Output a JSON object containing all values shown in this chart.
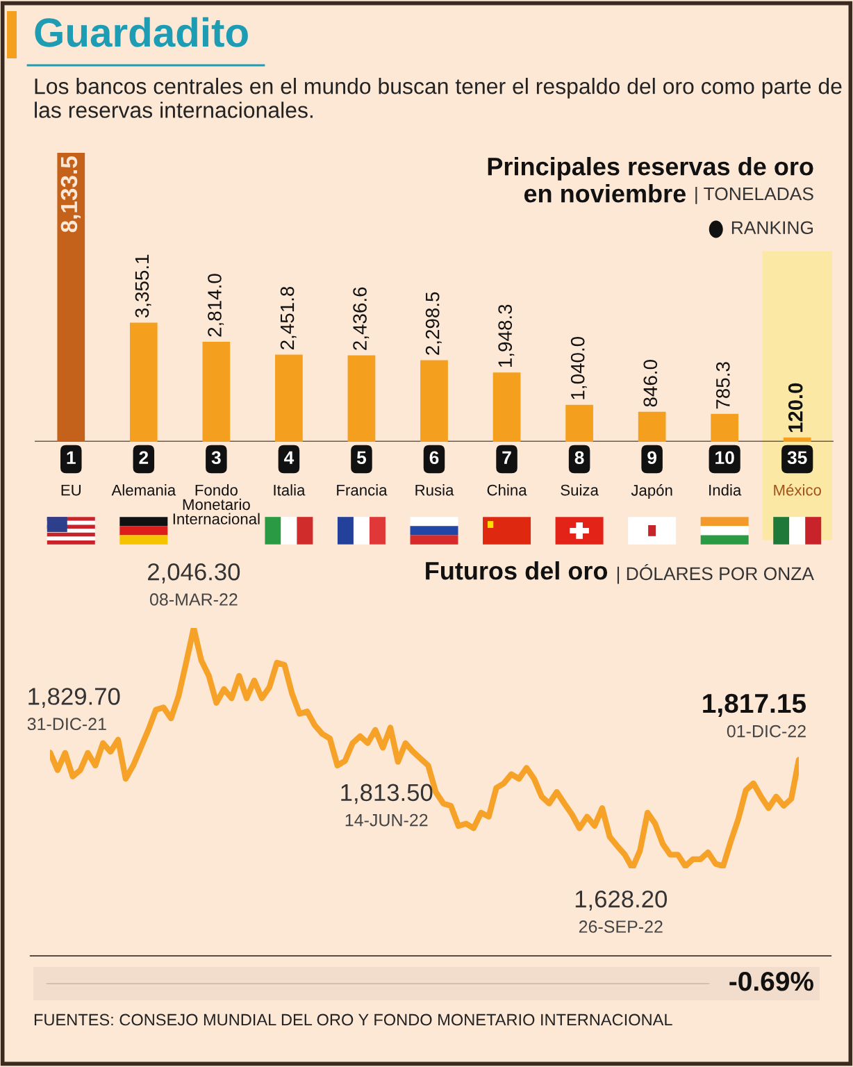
{
  "chart_data": [
    {
      "type": "bar",
      "title": "Principales reservas de oro en noviembre",
      "subtitle": "| TONELADAS",
      "categories": [
        "EU",
        "Alemania",
        "Fondo Monetario Internacional",
        "Italia",
        "Francia",
        "Rusia",
        "China",
        "Suiza",
        "Japón",
        "India",
        "México"
      ],
      "values": [
        8133.5,
        3355.1,
        2814.0,
        2451.8,
        2436.6,
        2298.5,
        1948.3,
        1040.0,
        846.0,
        785.3,
        120.0
      ],
      "colors": [
        "#c4621b",
        "#f59f1e",
        "#f59f1e",
        "#f59f1e",
        "#f59f1e",
        "#f59f1e",
        "#f59f1e",
        "#f59f1e",
        "#f59f1e",
        "#f59f1e",
        "#f59f1e"
      ],
      "value_labels": [
        "8,133.5",
        "3,355.1",
        "2,814.0",
        "2,451.8",
        "2,436.6",
        "2,298.5",
        "1,948.3",
        "1,040.0",
        "846.0",
        "785.3",
        "120.0"
      ],
      "bands": [
        {
          "axis": "x",
          "from": "México",
          "to": "México",
          "color": "#fbe8a4"
        }
      ],
      "annotations": [
        "Guardadito",
        "Los bancos centrales en el mundo buscan tener el respaldo del oro como parte de las reservas internacionales.",
        "RANKING",
        {
          "text": "1",
          "x": "EU",
          "y": 0
        },
        {
          "text": "2",
          "x": "Alemania",
          "y": 0
        },
        {
          "text": "3",
          "x": "Fondo Monetario Internacional",
          "y": 0
        },
        {
          "text": "4",
          "x": "Italia",
          "y": 0
        },
        {
          "text": "5",
          "x": "Francia",
          "y": 0
        },
        {
          "text": "6",
          "x": "Rusia",
          "y": 0
        },
        {
          "text": "7",
          "x": "China",
          "y": 0
        },
        {
          "text": "8",
          "x": "Suiza",
          "y": 0
        },
        {
          "text": "9",
          "x": "Japón",
          "y": 0
        },
        {
          "text": "10",
          "x": "India",
          "y": 0
        },
        {
          "text": "35",
          "x": "México",
          "y": 0
        }
      ]
    },
    {
      "type": "line",
      "title": "Futuros del oro",
      "subtitle": "| DÓLARES POR ONZA",
      "categories": [
        null,
        null,
        null,
        null,
        null,
        null,
        null,
        null,
        null,
        null,
        null,
        null,
        null,
        null,
        null,
        null,
        null,
        null,
        null,
        null,
        null,
        null,
        null,
        null,
        null,
        null,
        null,
        null,
        null,
        null,
        null,
        null,
        null,
        null,
        null,
        null,
        null,
        null,
        null,
        null,
        null,
        null,
        null,
        null,
        null,
        null,
        null,
        null,
        null,
        null,
        null,
        null,
        null,
        null,
        null,
        null,
        null,
        null,
        null,
        null,
        null,
        null,
        null,
        null,
        null,
        null,
        null,
        null,
        null,
        null,
        null,
        null,
        null,
        null,
        null,
        null,
        null,
        null,
        null,
        null,
        null,
        null,
        null,
        null,
        null,
        null,
        null,
        null,
        null,
        null,
        null,
        null,
        null,
        null,
        null,
        null,
        null,
        null,
        null,
        null
      ],
      "series": [
        {
          "color": "#f6a228",
          "values": [
            1829.7,
            1799,
            1829,
            1788,
            1799,
            1829,
            1807,
            1846,
            1831,
            1852,
            1784,
            1807,
            1838,
            1869,
            1904,
            1908,
            1889,
            1928,
            1986,
            2046.3,
            1990,
            1963,
            1916,
            1940,
            1924,
            1963,
            1924,
            1955,
            1924,
            1943,
            1986,
            1982,
            1932,
            1897,
            1901,
            1877,
            1862,
            1854,
            1807,
            1815,
            1846,
            1858,
            1846,
            1869,
            1838,
            1873,
            1813.5,
            1846,
            1831,
            1819,
            1807,
            1761,
            1741,
            1737,
            1702,
            1706,
            1698,
            1725,
            1718,
            1768,
            1776,
            1792,
            1784,
            1803,
            1784,
            1753,
            1741,
            1761,
            1741,
            1722,
            1698,
            1718,
            1702,
            1733,
            1683,
            1667,
            1652,
            1628.2,
            1659,
            1725,
            1706,
            1671,
            1652,
            1652,
            1632,
            1644,
            1644,
            1656,
            1636,
            1632,
            1675,
            1714,
            1764,
            1776,
            1753,
            1733,
            1753,
            1737,
            1749,
            1817.15
          ],
          "value_labels": [
            "1,829.70",
            null,
            null,
            null,
            null,
            null,
            null,
            null,
            null,
            null,
            null,
            null,
            null,
            null,
            null,
            null,
            null,
            null,
            null,
            "2,046.30",
            null,
            null,
            null,
            null,
            null,
            null,
            null,
            null,
            null,
            null,
            null,
            null,
            null,
            null,
            null,
            null,
            null,
            null,
            null,
            null,
            null,
            null,
            null,
            null,
            null,
            null,
            "1,813.50",
            null,
            null,
            null,
            null,
            null,
            null,
            null,
            null,
            null,
            null,
            null,
            null,
            null,
            null,
            null,
            null,
            null,
            null,
            null,
            null,
            null,
            null,
            null,
            null,
            null,
            null,
            null,
            null,
            null,
            null,
            "1,628.20",
            null,
            null,
            null,
            null,
            null,
            null,
            null,
            null,
            null,
            null,
            null,
            null,
            null,
            null,
            null,
            null,
            null,
            null,
            null,
            null,
            null,
            "1,817.15"
          ]
        }
      ],
      "annotations": [
        "31-DIC-21",
        "08-MAR-22",
        "14-JUN-22",
        "26-SEP-22",
        "01-DIC-22",
        "-0.69%",
        "FUENTES: CONSEJO MUNDIAL DEL ORO Y FONDO MONETARIO INTERNACIONAL"
      ]
    }
  ]
}
